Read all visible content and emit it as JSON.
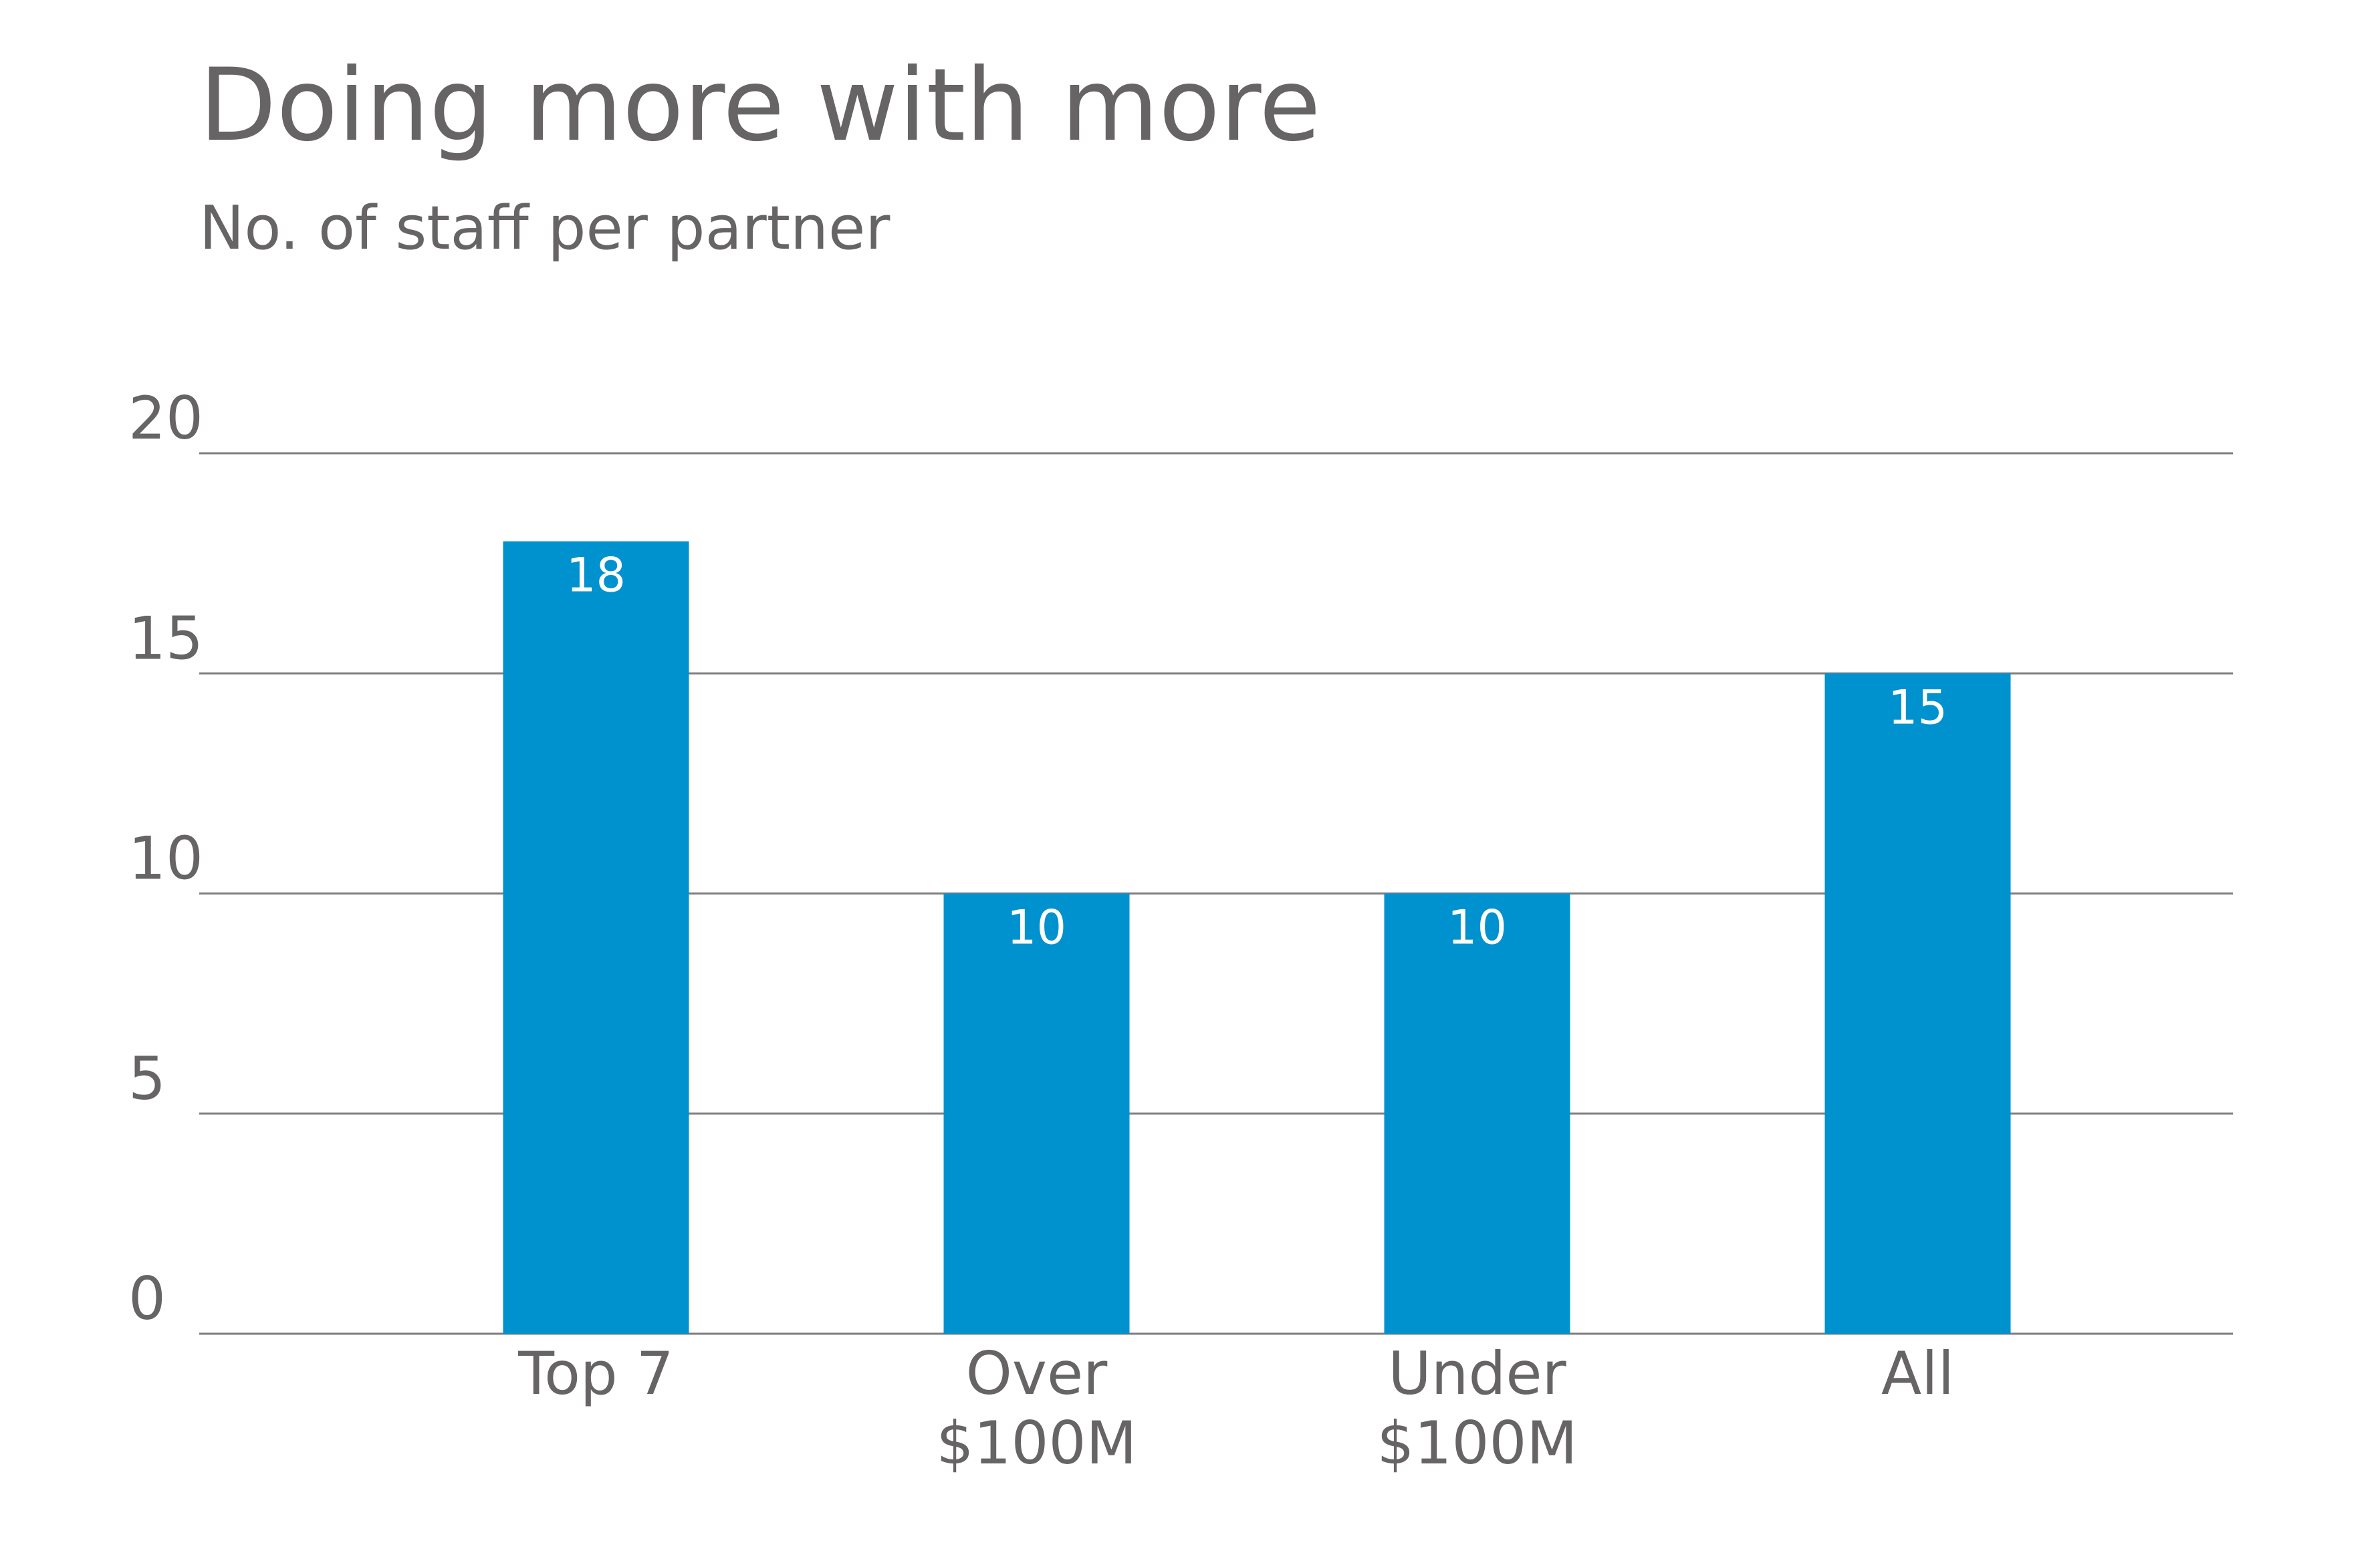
{
  "chart_data": {
    "type": "bar",
    "title": "Doing more with more",
    "subtitle": "No. of staff per partner",
    "xlabel": "",
    "ylabel": "",
    "categories": [
      "Top 7",
      "Over $100M",
      "Under $100M",
      "All"
    ],
    "category_lines": [
      [
        "Top 7"
      ],
      [
        "Over",
        "$100M"
      ],
      [
        "Under",
        "$100M"
      ],
      [
        "All"
      ]
    ],
    "values": [
      18,
      10,
      10,
      15
    ],
    "data_labels": [
      "18",
      "10",
      "10",
      "15"
    ],
    "ylim": [
      0,
      20
    ],
    "yticks": [
      0,
      5,
      10,
      15,
      20
    ],
    "ytick_labels": [
      "0",
      "5",
      "10",
      "15",
      "20"
    ],
    "grid": true,
    "legend": "none"
  },
  "colors": {
    "bar": "#0091cf",
    "text": "#666464",
    "grid": "#7d7d7d",
    "data_label": "#ffffff"
  }
}
